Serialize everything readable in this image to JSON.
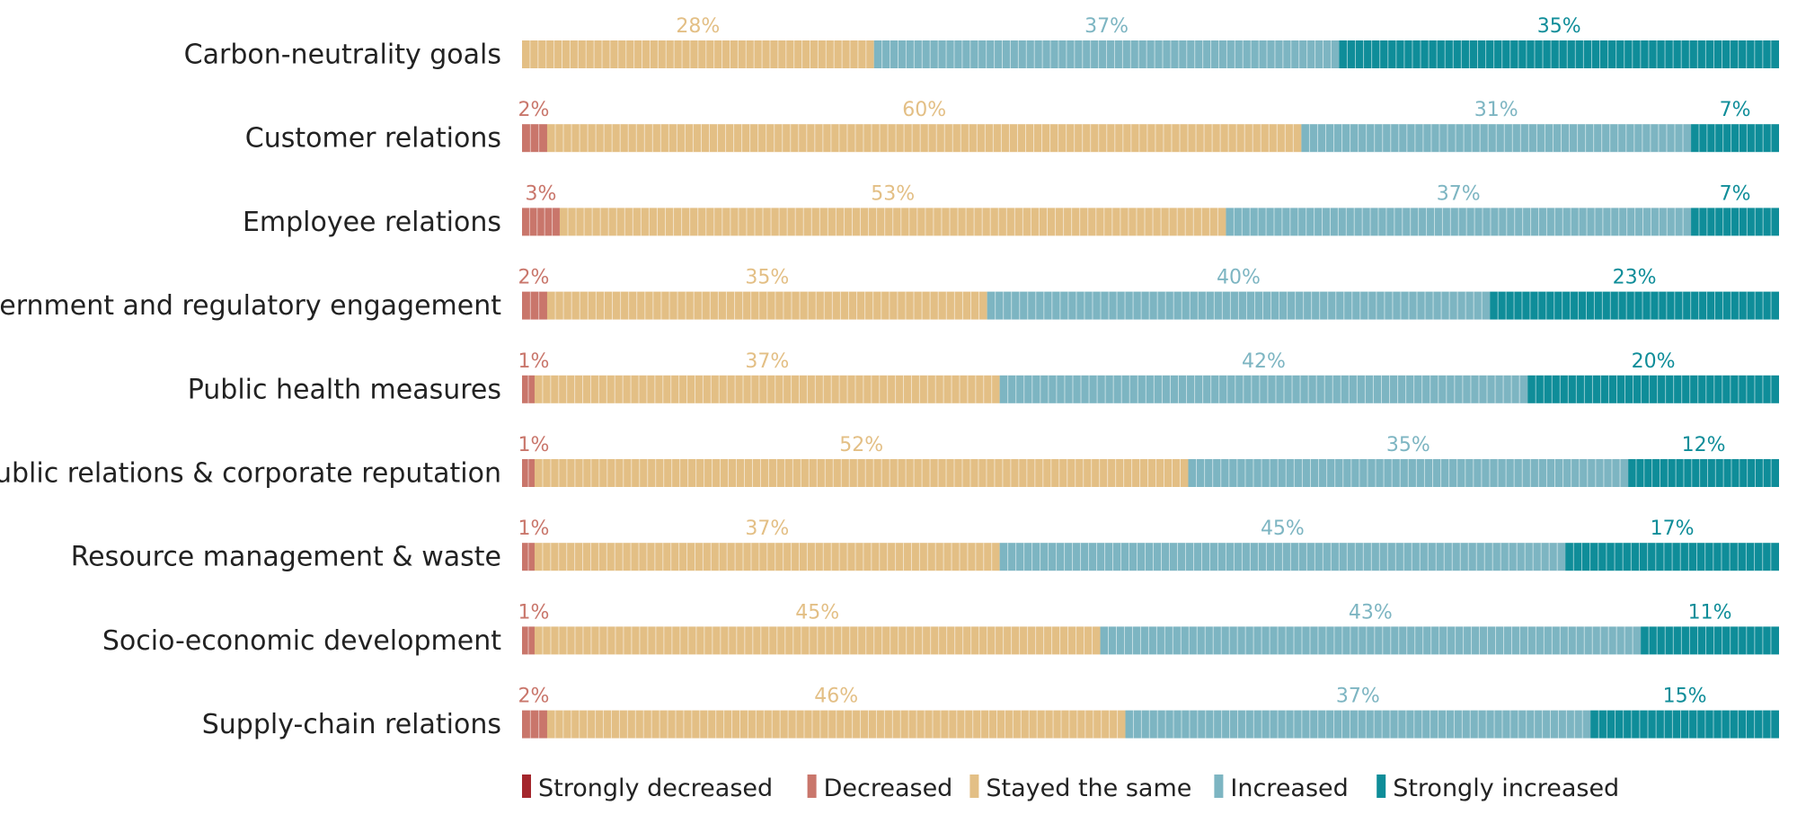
{
  "chart_data": {
    "type": "bar",
    "orientation": "horizontal",
    "stacked": true,
    "normalized": true,
    "categories": [
      "Carbon-neutrality goals",
      "Customer relations",
      "Employee relations",
      "Government and regulatory engagement",
      "Public health measures",
      "Public relations & corporate reputation",
      "Resource management & waste",
      "Socio-economic development",
      "Supply-chain relations"
    ],
    "series": [
      {
        "name": "Strongly decreased",
        "color": "#a4262c",
        "values": [
          0,
          0,
          0,
          0,
          0,
          0,
          0,
          0,
          0
        ],
        "labels": [
          "",
          "",
          "",
          "",
          "",
          "",
          "",
          "",
          ""
        ]
      },
      {
        "name": "Decreased",
        "color": "#c9766b",
        "values": [
          0,
          2,
          3,
          2,
          1,
          1,
          1,
          1,
          2
        ],
        "labels": [
          "",
          "2%",
          "3%",
          "2%",
          "1%",
          "1%",
          "1%",
          "1%",
          "2%"
        ]
      },
      {
        "name": "Stayed the same",
        "color": "#e3bf85",
        "values": [
          28,
          60,
          53,
          35,
          37,
          52,
          37,
          45,
          46
        ],
        "labels": [
          "28%",
          "60%",
          "53%",
          "35%",
          "37%",
          "52%",
          "37%",
          "45%",
          "46%"
        ]
      },
      {
        "name": "Increased",
        "color": "#7db5c2",
        "values": [
          37,
          31,
          37,
          40,
          42,
          35,
          45,
          43,
          37
        ],
        "labels": [
          "37%",
          "31%",
          "37%",
          "40%",
          "42%",
          "35%",
          "45%",
          "43%",
          "37%"
        ]
      },
      {
        "name": "Strongly increased",
        "color": "#0f8d99",
        "values": [
          35,
          7,
          7,
          23,
          20,
          12,
          17,
          11,
          15
        ],
        "labels": [
          "35%",
          "7%",
          "7%",
          "23%",
          "20%",
          "12%",
          "17%",
          "11%",
          "15%"
        ]
      }
    ],
    "xlim": [
      0,
      100
    ],
    "grid": false,
    "legend_position": "bottom"
  }
}
